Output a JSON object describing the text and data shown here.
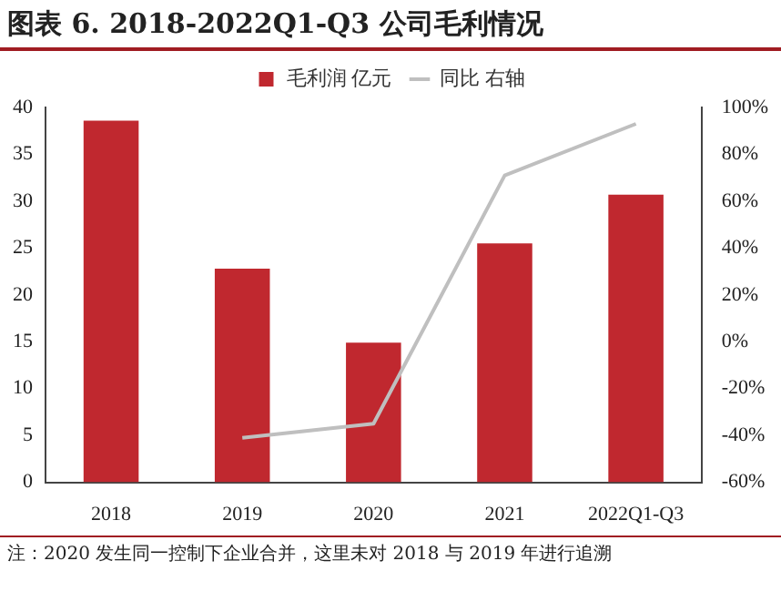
{
  "chart_data": {
    "type": "bar",
    "title": "图表 6.   2018-2022Q1-Q3 公司毛利情况",
    "categories": [
      "2018",
      "2019",
      "2020",
      "2021",
      "2022Q1-Q3"
    ],
    "series": [
      {
        "name": "毛利润 亿元",
        "color": "#c0282f",
        "values": [
          38.6,
          22.8,
          14.9,
          25.5,
          30.7
        ]
      },
      {
        "name": "同比 右轴",
        "type": "line",
        "axis": "y2",
        "color": "#bfbfbf",
        "values": [
          null,
          -41,
          -35,
          71,
          93
        ]
      }
    ],
    "ylim": [
      0,
      40
    ],
    "yticks": [
      0,
      5,
      10,
      15,
      20,
      25,
      30,
      35,
      40
    ],
    "y2lim": [
      -60,
      100
    ],
    "y2ticks": [
      {
        "value": -60,
        "label": "-60%"
      },
      {
        "value": -40,
        "label": "-40%"
      },
      {
        "value": -20,
        "label": "-20%"
      },
      {
        "value": 0,
        "label": "0%"
      },
      {
        "value": 20,
        "label": "20%"
      },
      {
        "value": 40,
        "label": "40%"
      },
      {
        "value": 60,
        "label": "60%"
      },
      {
        "value": 80,
        "label": "80%"
      },
      {
        "value": 100,
        "label": "100%"
      }
    ],
    "grid": false,
    "legend": "top",
    "marker": "none",
    "annotations": [
      "注：2020 发生同一控制下企业合并，这里未对 2018 与 2019 年进行追溯"
    ]
  }
}
